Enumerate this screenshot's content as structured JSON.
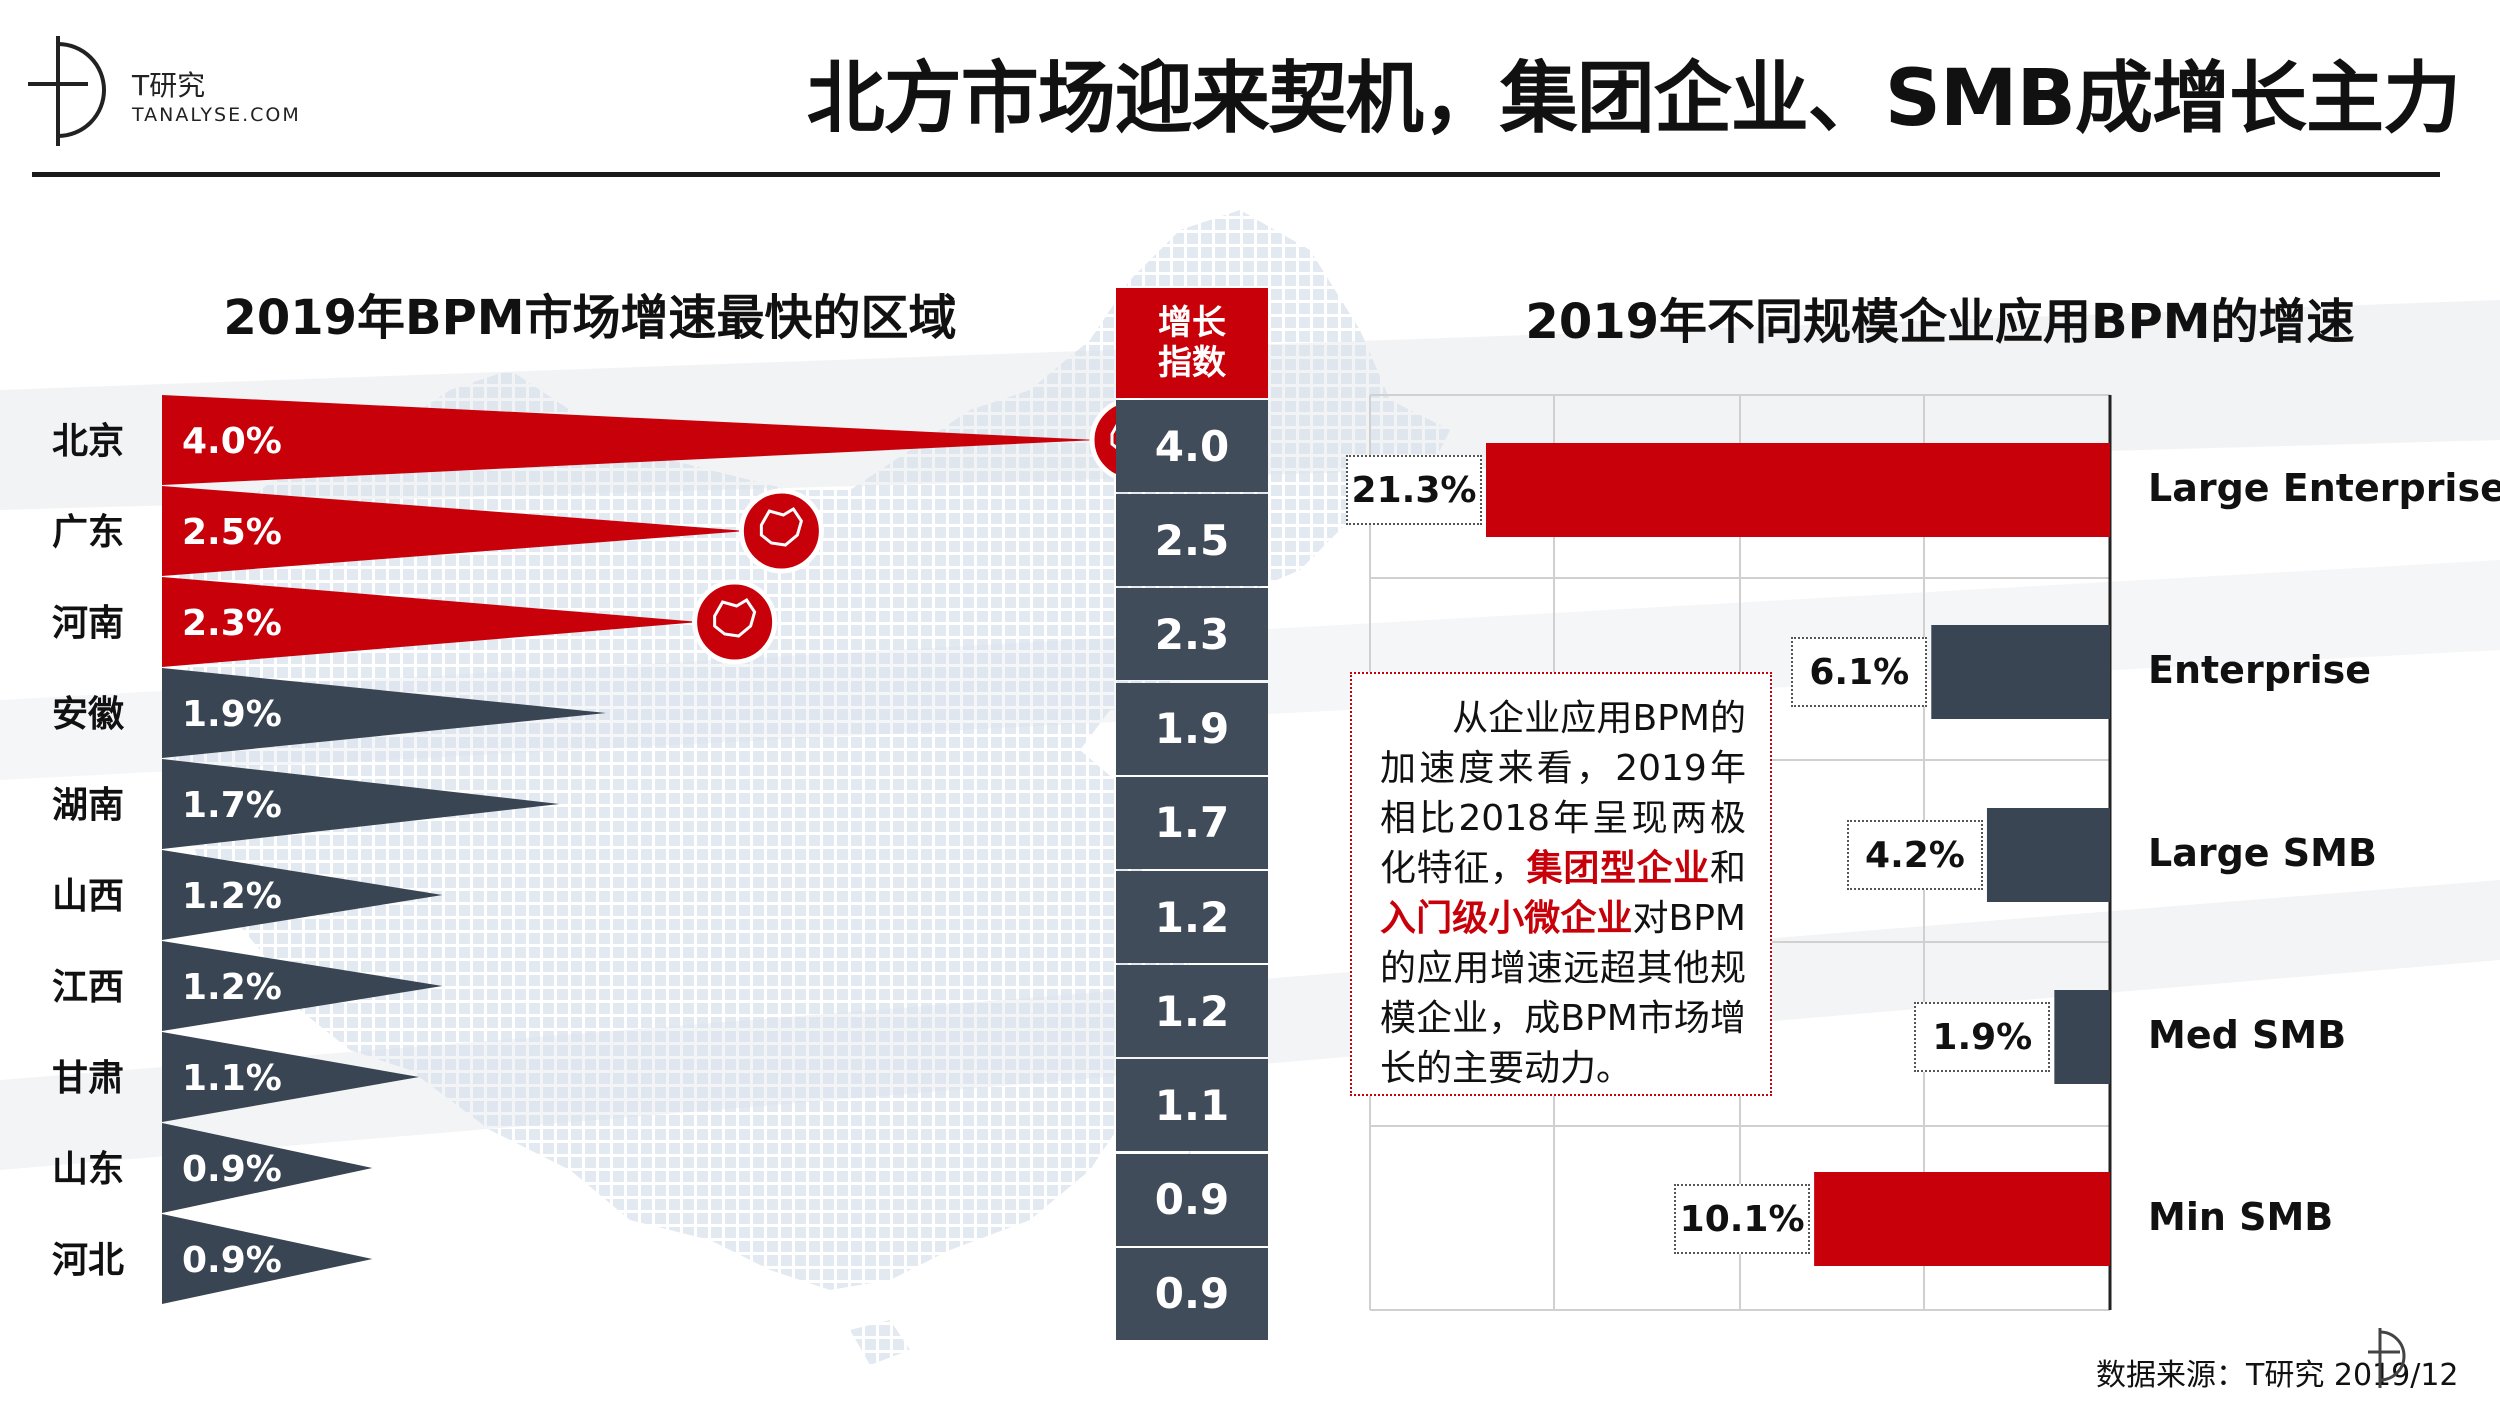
{
  "header": {
    "logo_name": "T研究",
    "logo_url": "TANALYSE.COM",
    "title": "北方市场迎来契机，集团企业、SMB成增长主力"
  },
  "colors": {
    "red": "#c8000a",
    "navy": "#394552",
    "index_cell": "#414c5a"
  },
  "index_header": [
    "增长",
    "指数"
  ],
  "callout": {
    "parts": [
      {
        "text": "从企业应用BPM的加速度来看，2019年相比2018年呈现两极化特征，",
        "highlight": false
      },
      {
        "text": "集团型企业",
        "highlight": true
      },
      {
        "text": "和",
        "highlight": false
      },
      {
        "text": "入门级小微企业",
        "highlight": true
      },
      {
        "text": "对BPM的应用增速远超其他规模企业，成BPM市场增长的主要动力。",
        "highlight": false
      }
    ]
  },
  "source": "数据来源：T研究 2019/12",
  "chart_data": [
    {
      "type": "bar",
      "orientation": "horizontal",
      "title": "2019年BPM市场增速最快的区域",
      "categories": [
        "北京",
        "广东",
        "河南",
        "安徽",
        "湖南",
        "山西",
        "江西",
        "甘肃",
        "山东",
        "河北"
      ],
      "values": [
        4.0,
        2.5,
        2.3,
        1.9,
        1.7,
        1.2,
        1.2,
        1.1,
        0.9,
        0.9
      ],
      "value_labels": [
        "4.0%",
        "2.5%",
        "2.3%",
        "1.9%",
        "1.7%",
        "1.2%",
        "1.2%",
        "1.1%",
        "0.9%",
        "0.9%"
      ],
      "index_labels": [
        "4.0",
        "2.5",
        "2.3",
        "1.9",
        "1.7",
        "1.2",
        "1.2",
        "1.1",
        "0.9",
        "0.9"
      ],
      "highlight": [
        true,
        true,
        true,
        false,
        false,
        false,
        false,
        false,
        false,
        false
      ],
      "unit": "%"
    },
    {
      "type": "bar",
      "orientation": "horizontal",
      "title": "2019年不同规模企业应用BPM的增速",
      "categories": [
        "Large Enterprise",
        "Enterprise",
        "Large SMB",
        "Med SMB",
        "Min SMB"
      ],
      "values": [
        21.3,
        6.1,
        4.2,
        1.9,
        10.1
      ],
      "value_labels": [
        "21.3%",
        "6.1%",
        "4.2%",
        "1.9%",
        "10.1%"
      ],
      "highlight": [
        true,
        false,
        false,
        false,
        true
      ],
      "unit": "%",
      "xlim": [
        0,
        21.3
      ],
      "grid": true
    }
  ]
}
